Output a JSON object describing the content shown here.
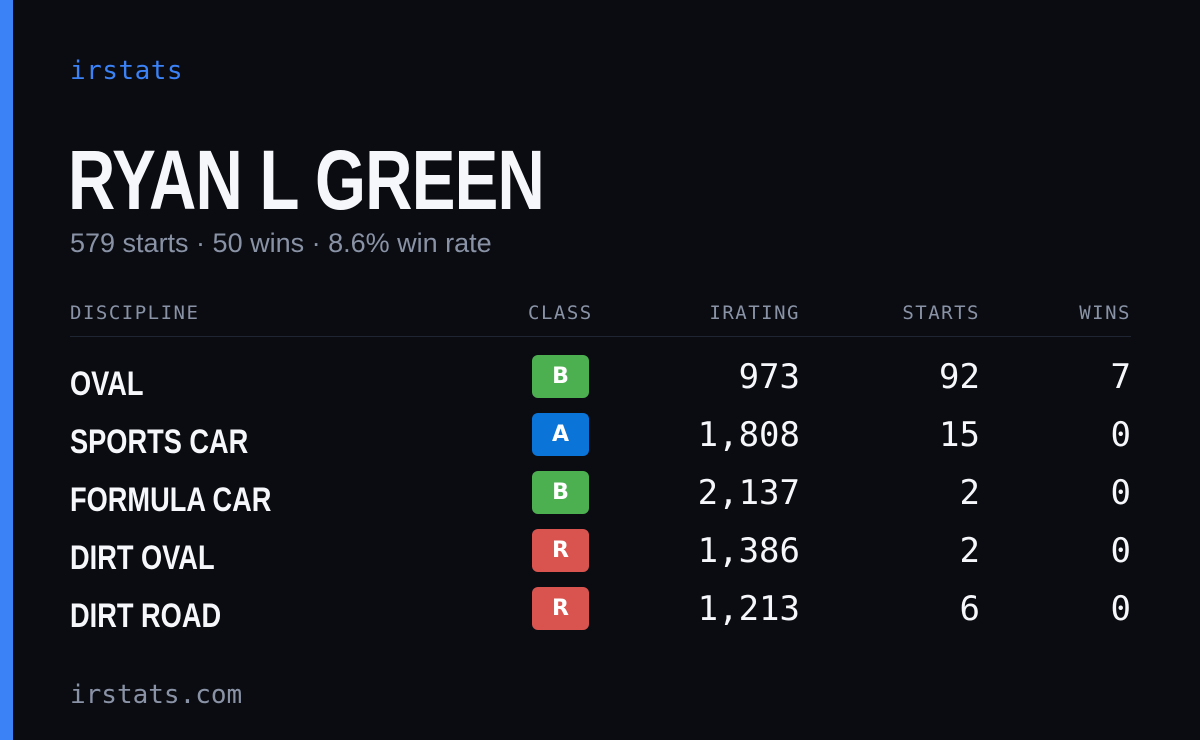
{
  "brand": "irstats",
  "driver": {
    "name": "RYAN L GREEN",
    "summary": "579 starts · 50 wins · 8.6% win rate"
  },
  "table": {
    "headers": {
      "discipline": "DISCIPLINE",
      "class": "CLASS",
      "irating": "IRATING",
      "starts": "STARTS",
      "wins": "WINS"
    },
    "rows": [
      {
        "discipline": "OVAL",
        "class": "B",
        "irating": "973",
        "starts": "92",
        "wins": "7"
      },
      {
        "discipline": "SPORTS CAR",
        "class": "A",
        "irating": "1,808",
        "starts": "15",
        "wins": "0"
      },
      {
        "discipline": "FORMULA CAR",
        "class": "B",
        "irating": "2,137",
        "starts": "2",
        "wins": "0"
      },
      {
        "discipline": "DIRT OVAL",
        "class": "R",
        "irating": "1,386",
        "starts": "2",
        "wins": "0"
      },
      {
        "discipline": "DIRT ROAD",
        "class": "R",
        "irating": "1,213",
        "starts": "6",
        "wins": "0"
      }
    ]
  },
  "class_colors": {
    "A": "#0a74d8",
    "B": "#4caf50",
    "R": "#d9534f"
  },
  "accent_color": "#3b82f6",
  "footer": "irstats.com"
}
